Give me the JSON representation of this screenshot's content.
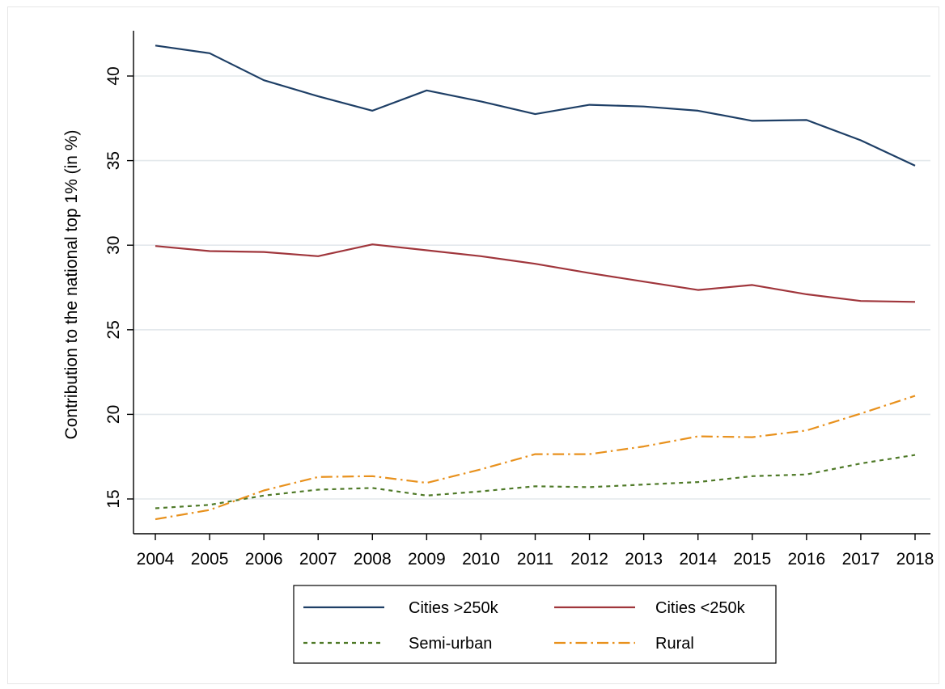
{
  "chart_data": {
    "type": "line",
    "title": "",
    "xlabel": "",
    "ylabel": "Contribution to the national top 1% (in %)",
    "x": [
      2004,
      2005,
      2006,
      2007,
      2008,
      2009,
      2010,
      2011,
      2012,
      2013,
      2014,
      2015,
      2016,
      2017,
      2018
    ],
    "ylim": [
      13.5,
      42.7
    ],
    "yticks": [
      15,
      20,
      25,
      30,
      35,
      40
    ],
    "grid": true,
    "legend_position": "bottom",
    "series": [
      {
        "name": "Cities >250k",
        "color": "#1e3f66",
        "dash": "solid",
        "values": [
          41.8,
          41.35,
          39.75,
          38.8,
          37.95,
          39.15,
          38.5,
          37.75,
          38.3,
          38.2,
          37.95,
          37.35,
          37.4,
          36.2,
          34.7
        ]
      },
      {
        "name": "Cities <250k",
        "color": "#a0363c",
        "dash": "solid",
        "values": [
          29.95,
          29.65,
          29.6,
          29.35,
          30.05,
          29.7,
          29.35,
          28.9,
          28.35,
          27.85,
          27.35,
          27.65,
          27.1,
          26.7,
          26.65
        ]
      },
      {
        "name": "Semi-urban",
        "color": "#4f7a28",
        "dash": "dash",
        "values": [
          14.45,
          14.65,
          15.2,
          15.55,
          15.65,
          15.2,
          15.45,
          15.75,
          15.7,
          15.85,
          16.0,
          16.35,
          16.45,
          17.1,
          17.6
        ]
      },
      {
        "name": "Rural",
        "color": "#e8911d",
        "dash": "dashdot",
        "values": [
          13.8,
          14.35,
          15.5,
          16.3,
          16.35,
          15.95,
          16.75,
          17.65,
          17.65,
          18.1,
          18.7,
          18.65,
          19.05,
          20.05,
          21.1
        ]
      }
    ]
  }
}
